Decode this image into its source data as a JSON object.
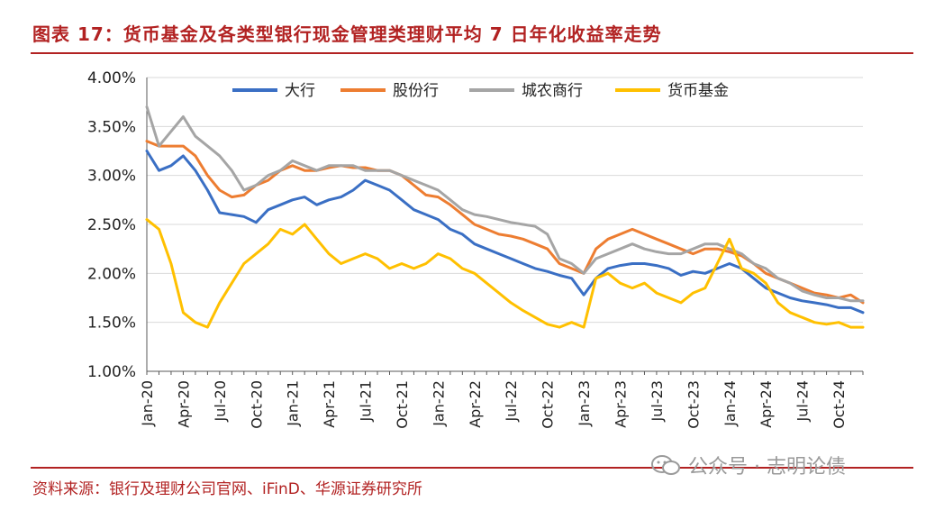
{
  "title": "图表 17：货币基金及各类型银行现金管理类理财平均 7 日年化收益率走势",
  "source": "资料来源：银行及理财公司官网、iFinD、华源证券研究所",
  "watermark": "公众号 · 志明论债",
  "colors": {
    "accent": "#b22222",
    "grid": "#d9d9d9"
  },
  "chart_data": {
    "type": "line",
    "ylim": [
      1.0,
      4.0
    ],
    "yticks": [
      "4.00%",
      "3.50%",
      "3.00%",
      "2.50%",
      "2.00%",
      "1.50%",
      "1.00%"
    ],
    "ytick_values": [
      4.0,
      3.5,
      3.0,
      2.5,
      2.0,
      1.5,
      1.0
    ],
    "x_tick_labels": [
      "Jan-20",
      "Apr-20",
      "Jul-20",
      "Oct-20",
      "Jan-21",
      "Apr-21",
      "Jul-21",
      "Oct-21",
      "Jan-22",
      "Apr-22",
      "Jul-22",
      "Oct-22",
      "Jan-23",
      "Apr-23",
      "Jul-23",
      "Oct-23",
      "Jan-24",
      "Apr-24",
      "Jul-24",
      "Oct-24"
    ],
    "x_dates": [
      "Jan-20",
      "Feb-20",
      "Mar-20",
      "Apr-20",
      "May-20",
      "Jun-20",
      "Jul-20",
      "Aug-20",
      "Sep-20",
      "Oct-20",
      "Nov-20",
      "Dec-20",
      "Jan-21",
      "Feb-21",
      "Mar-21",
      "Apr-21",
      "May-21",
      "Jun-21",
      "Jul-21",
      "Aug-21",
      "Sep-21",
      "Oct-21",
      "Nov-21",
      "Dec-21",
      "Jan-22",
      "Feb-22",
      "Mar-22",
      "Apr-22",
      "May-22",
      "Jun-22",
      "Jul-22",
      "Aug-22",
      "Sep-22",
      "Oct-22",
      "Nov-22",
      "Dec-22",
      "Jan-23",
      "Feb-23",
      "Mar-23",
      "Apr-23",
      "May-23",
      "Jun-23",
      "Jul-23",
      "Aug-23",
      "Sep-23",
      "Oct-23",
      "Nov-23",
      "Dec-23",
      "Jan-24",
      "Feb-24",
      "Mar-24",
      "Apr-24",
      "May-24",
      "Jun-24",
      "Jul-24",
      "Aug-24",
      "Sep-24",
      "Oct-24",
      "Nov-24",
      "Dec-24"
    ],
    "legend_position": "top",
    "grid": "horizontal",
    "series": [
      {
        "name": "大行",
        "color": "#3a6fc4",
        "values": [
          3.25,
          3.05,
          3.1,
          3.2,
          3.05,
          2.85,
          2.62,
          2.6,
          2.58,
          2.52,
          2.65,
          2.7,
          2.75,
          2.78,
          2.7,
          2.75,
          2.78,
          2.85,
          2.95,
          2.9,
          2.85,
          2.75,
          2.65,
          2.6,
          2.55,
          2.45,
          2.4,
          2.3,
          2.25,
          2.2,
          2.15,
          2.1,
          2.05,
          2.02,
          1.98,
          1.95,
          1.78,
          1.95,
          2.05,
          2.08,
          2.1,
          2.1,
          2.08,
          2.05,
          1.98,
          2.02,
          2.0,
          2.05,
          2.1,
          2.05,
          1.95,
          1.85,
          1.8,
          1.75,
          1.72,
          1.7,
          1.68,
          1.65,
          1.65,
          1.6
        ]
      },
      {
        "name": "股份行",
        "color": "#ed7d31",
        "values": [
          3.35,
          3.3,
          3.3,
          3.3,
          3.2,
          3.0,
          2.85,
          2.78,
          2.8,
          2.9,
          2.95,
          3.05,
          3.1,
          3.05,
          3.05,
          3.08,
          3.1,
          3.08,
          3.08,
          3.05,
          3.05,
          3.0,
          2.9,
          2.8,
          2.78,
          2.7,
          2.6,
          2.5,
          2.45,
          2.4,
          2.38,
          2.35,
          2.3,
          2.25,
          2.1,
          2.05,
          2.0,
          2.25,
          2.35,
          2.4,
          2.45,
          2.4,
          2.35,
          2.3,
          2.25,
          2.2,
          2.25,
          2.25,
          2.22,
          2.18,
          2.1,
          2.0,
          1.95,
          1.9,
          1.85,
          1.8,
          1.78,
          1.75,
          1.78,
          1.7
        ]
      },
      {
        "name": "城农商行",
        "color": "#a5a5a5",
        "values": [
          3.7,
          3.3,
          3.45,
          3.6,
          3.4,
          3.3,
          3.2,
          3.05,
          2.85,
          2.9,
          3.0,
          3.05,
          3.15,
          3.1,
          3.05,
          3.1,
          3.1,
          3.1,
          3.05,
          3.05,
          3.05,
          3.0,
          2.95,
          2.9,
          2.85,
          2.75,
          2.65,
          2.6,
          2.58,
          2.55,
          2.52,
          2.5,
          2.48,
          2.4,
          2.15,
          2.1,
          2.0,
          2.15,
          2.2,
          2.25,
          2.3,
          2.25,
          2.22,
          2.2,
          2.2,
          2.25,
          2.3,
          2.3,
          2.25,
          2.2,
          2.1,
          2.05,
          1.95,
          1.9,
          1.82,
          1.78,
          1.75,
          1.75,
          1.72,
          1.72
        ]
      },
      {
        "name": "货币基金",
        "color": "#ffc000",
        "values": [
          2.55,
          2.45,
          2.1,
          1.6,
          1.5,
          1.45,
          1.7,
          1.9,
          2.1,
          2.2,
          2.3,
          2.45,
          2.4,
          2.5,
          2.35,
          2.2,
          2.1,
          2.15,
          2.2,
          2.15,
          2.05,
          2.1,
          2.05,
          2.1,
          2.2,
          2.15,
          2.05,
          2.0,
          1.9,
          1.8,
          1.7,
          1.62,
          1.55,
          1.48,
          1.45,
          1.5,
          1.45,
          1.95,
          2.0,
          1.9,
          1.85,
          1.9,
          1.8,
          1.75,
          1.7,
          1.8,
          1.85,
          2.1,
          2.35,
          2.05,
          2.0,
          1.9,
          1.7,
          1.6,
          1.55,
          1.5,
          1.48,
          1.5,
          1.45,
          1.45
        ]
      }
    ]
  }
}
